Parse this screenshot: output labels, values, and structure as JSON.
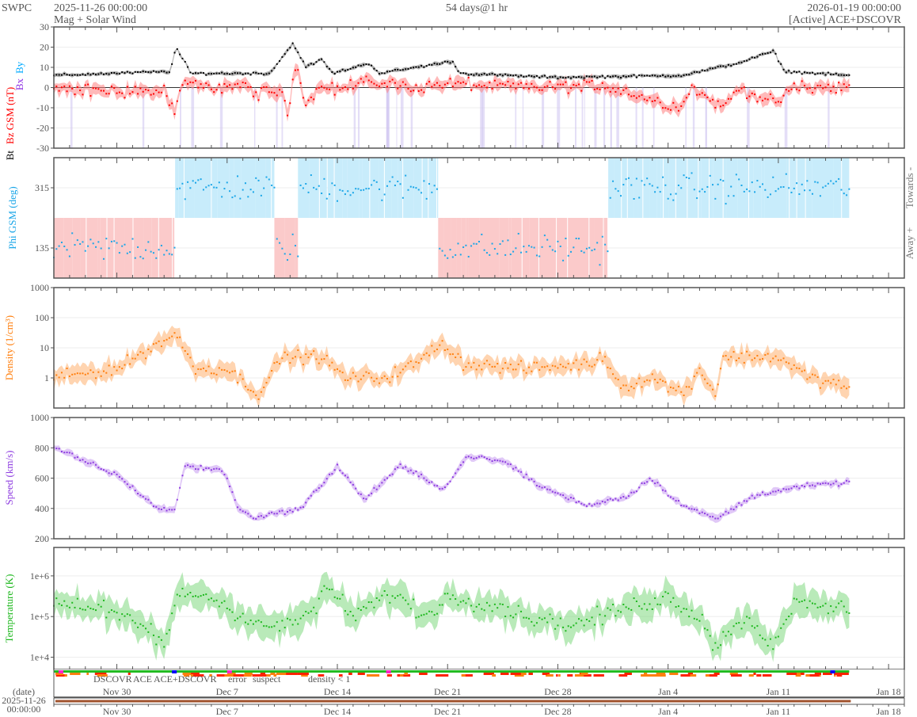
{
  "header": {
    "brand": "SWPC",
    "start": "2025-11-26 00:00:00",
    "product": "Mag + Solar Wind",
    "span": "54 days@1 hr",
    "end": "2026-01-19 00:00:00",
    "source": "[Active] ACE+DSCOVR"
  },
  "colors": {
    "bt": "#000000",
    "bz": "#ff0000",
    "bx": "#8a2be2",
    "by": "#00aaff",
    "phi": "#1aa6e8",
    "density": "#ff7f0e",
    "speed": "#8e3de0",
    "temp": "#1fb81f",
    "towards": "#c8ecfb",
    "away": "#fbcaca"
  },
  "labels": {
    "bt": "Bt",
    "bz": "Bz GSM (nT)",
    "bx": "Bx",
    "by": "By",
    "phi": "Phi GSM (deg)",
    "towards": "Towards -",
    "away": "Away +",
    "density": "Density (1/cm³)",
    "speed": "Speed (km/s)",
    "temp": "Temperature (K)"
  },
  "legend": {
    "dscovr": "DSCOVR",
    "ace": "ACE",
    "both": "ACE+DSCOVR",
    "error": "error",
    "suspect": "suspect",
    "density": "density < 1"
  },
  "date_axis": {
    "label": "(date)",
    "date": "2025-11-26",
    "time": "00:00:00"
  },
  "chart_data": {
    "type": "line",
    "x_unit": "days since 2025-11-26 00:00",
    "xlim": [
      0,
      54
    ],
    "x_ticks": [
      {
        "day": 4,
        "label": "Nov 30"
      },
      {
        "day": 11,
        "label": "Dec 7"
      },
      {
        "day": 18,
        "label": "Dec 14"
      },
      {
        "day": 25,
        "label": "Dec 21"
      },
      {
        "day": 32,
        "label": "Dec 28"
      },
      {
        "day": 39,
        "label": "Jan 4"
      },
      {
        "day": 46,
        "label": "Jan 11"
      },
      {
        "day": 53,
        "label": "Jan 18"
      }
    ],
    "panels": [
      {
        "name": "mag",
        "ylim": [
          -30,
          30
        ],
        "yticks": [
          "30",
          "20",
          "10",
          "0",
          "-10",
          "-20",
          "-30"
        ],
        "ytick_values": [
          30,
          20,
          10,
          0,
          -10,
          -20,
          -30
        ],
        "series": [
          {
            "name": "Bt",
            "anchors": [
              [
                0,
                6
              ],
              [
                7.4,
                8
              ],
              [
                7.75,
                20
              ],
              [
                8.7,
                7
              ],
              [
                13.7,
                7
              ],
              [
                15.2,
                22
              ],
              [
                16,
                10
              ],
              [
                17,
                14
              ],
              [
                17.7,
                7
              ],
              [
                20,
                12
              ],
              [
                20.7,
                7
              ],
              [
                25.3,
                13
              ],
              [
                25.8,
                7
              ],
              [
                31.8,
                5
              ],
              [
                39.9,
                6
              ],
              [
                43.4,
                12
              ],
              [
                45.7,
                18
              ],
              [
                46.4,
                8
              ],
              [
                50.5,
                6
              ]
            ]
          },
          {
            "name": "Bz",
            "anchors": [
              [
                0,
                -1
              ],
              [
                7,
                -2
              ],
              [
                7.7,
                -12
              ],
              [
                8.3,
                3
              ],
              [
                9.5,
                0
              ],
              [
                12,
                1
              ],
              [
                13,
                -3
              ],
              [
                14.5,
                -2
              ],
              [
                14.8,
                -15
              ],
              [
                15.4,
                13
              ],
              [
                16,
                -8
              ],
              [
                17,
                2
              ],
              [
                18,
                -1
              ],
              [
                20,
                3
              ],
              [
                23,
                0
              ],
              [
                25,
                2
              ],
              [
                30,
                0
              ],
              [
                35,
                1
              ],
              [
                39.7,
                -10
              ],
              [
                40.5,
                0
              ],
              [
                42.5,
                -10
              ],
              [
                43.5,
                0
              ],
              [
                45.8,
                -8
              ],
              [
                47,
                0
              ],
              [
                50.5,
                0
              ]
            ]
          }
        ]
      },
      {
        "name": "phi",
        "ylim": [
          45,
          405
        ],
        "yticks": [
          "315",
          "135"
        ],
        "ytick_values": [
          315,
          135
        ],
        "sectors": [
          {
            "from": 0,
            "to": 7.7,
            "polarity": "away"
          },
          {
            "from": 7.7,
            "to": 14,
            "polarity": "towards"
          },
          {
            "from": 14,
            "to": 15.5,
            "polarity": "away"
          },
          {
            "from": 15.5,
            "to": 24.4,
            "polarity": "towards"
          },
          {
            "from": 24.4,
            "to": 35.2,
            "polarity": "away"
          },
          {
            "from": 35.2,
            "to": 50.5,
            "polarity": "towards"
          }
        ]
      },
      {
        "name": "density",
        "scale": "log",
        "ylim": [
          0.1,
          1000
        ],
        "yticks": [
          "1000",
          "100",
          "10",
          "1"
        ],
        "ytick_values": [
          1000,
          100,
          10,
          1
        ],
        "anchors": [
          [
            0,
            1
          ],
          [
            4,
            2
          ],
          [
            7.7,
            30
          ],
          [
            9,
            2
          ],
          [
            11,
            2
          ],
          [
            13,
            0.3
          ],
          [
            14.5,
            5
          ],
          [
            17,
            5
          ],
          [
            18.5,
            1
          ],
          [
            21,
            1
          ],
          [
            23,
            3
          ],
          [
            24.7,
            15
          ],
          [
            26,
            3
          ],
          [
            30,
            2
          ],
          [
            34,
            3
          ],
          [
            35,
            5
          ],
          [
            36,
            0.5
          ],
          [
            38,
            1
          ],
          [
            40,
            0.3
          ],
          [
            41,
            2
          ],
          [
            42,
            0.3
          ],
          [
            42.5,
            5
          ],
          [
            46,
            5
          ],
          [
            48,
            1
          ],
          [
            50.5,
            0.5
          ]
        ]
      },
      {
        "name": "speed",
        "ylim": [
          200,
          1000
        ],
        "yticks": [
          "1000",
          "800",
          "600",
          "400",
          "200"
        ],
        "ytick_values": [
          1000,
          800,
          600,
          400,
          200
        ],
        "anchors": [
          [
            0,
            800
          ],
          [
            4,
            620
          ],
          [
            6.6,
            400
          ],
          [
            7.7,
            390
          ],
          [
            8.3,
            680
          ],
          [
            10.8,
            650
          ],
          [
            11.7,
            400
          ],
          [
            12.7,
            340
          ],
          [
            15.7,
            400
          ],
          [
            18,
            680
          ],
          [
            19.7,
            460
          ],
          [
            22,
            680
          ],
          [
            24.8,
            530
          ],
          [
            26.3,
            750
          ],
          [
            28.8,
            700
          ],
          [
            30.8,
            550
          ],
          [
            33.8,
            420
          ],
          [
            36.4,
            480
          ],
          [
            37.9,
            600
          ],
          [
            39.9,
            420
          ],
          [
            42.1,
            330
          ],
          [
            43.9,
            450
          ],
          [
            44.9,
            500
          ],
          [
            47.9,
            550
          ],
          [
            50.5,
            570
          ]
        ]
      },
      {
        "name": "temperature",
        "scale": "log",
        "ylim": [
          5000,
          5000000
        ],
        "yticks": [
          "1e+6",
          "1e+5",
          "1e+4"
        ],
        "ytick_values": [
          1000000,
          100000,
          10000
        ],
        "anchors": [
          [
            0,
            250000
          ],
          [
            3,
            150000
          ],
          [
            6,
            50000
          ],
          [
            7,
            20000
          ],
          [
            8,
            400000
          ],
          [
            10,
            300000
          ],
          [
            12,
            100000
          ],
          [
            14,
            50000
          ],
          [
            16,
            100000
          ],
          [
            17.5,
            500000
          ],
          [
            19,
            100000
          ],
          [
            21.5,
            400000
          ],
          [
            23.5,
            100000
          ],
          [
            25,
            300000
          ],
          [
            28,
            200000
          ],
          [
            30,
            100000
          ],
          [
            33,
            60000
          ],
          [
            36,
            150000
          ],
          [
            39,
            300000
          ],
          [
            41,
            100000
          ],
          [
            42,
            20000
          ],
          [
            44,
            100000
          ],
          [
            45.5,
            20000
          ],
          [
            47,
            200000
          ],
          [
            50.5,
            150000
          ]
        ]
      }
    ]
  }
}
